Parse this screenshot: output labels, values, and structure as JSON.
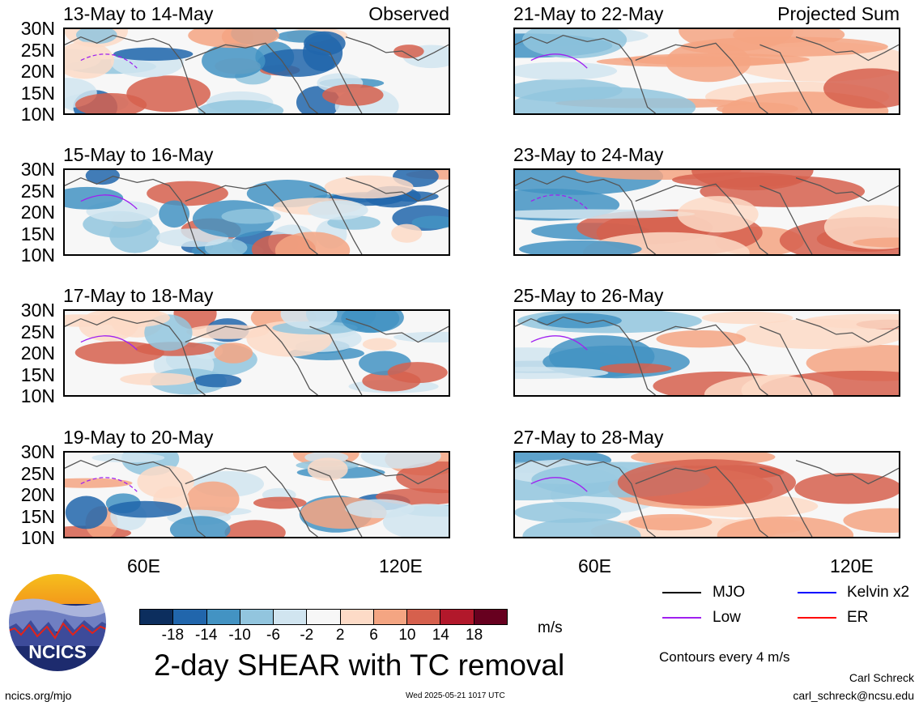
{
  "panels": [
    {
      "id": "p1",
      "title": "13-May to 14-May",
      "tag": "Observed"
    },
    {
      "id": "p2",
      "title": "21-May to 22-May",
      "tag": "Projected Sum"
    },
    {
      "id": "p3",
      "title": "15-May to 16-May",
      "tag": ""
    },
    {
      "id": "p4",
      "title": "23-May to 24-May",
      "tag": ""
    },
    {
      "id": "p5",
      "title": "17-May to 18-May",
      "tag": ""
    },
    {
      "id": "p6",
      "title": "25-May to 26-May",
      "tag": ""
    },
    {
      "id": "p7",
      "title": "19-May to 20-May",
      "tag": ""
    },
    {
      "id": "p8",
      "title": "27-May to 28-May",
      "tag": ""
    }
  ],
  "lat_labels": [
    "30N",
    "25N",
    "20N",
    "15N",
    "10N"
  ],
  "lon_labels": [
    "60E",
    "120E"
  ],
  "colorbar": {
    "ticks": [
      "-18",
      "-14",
      "-10",
      "-6",
      "-2",
      "2",
      "6",
      "10",
      "14",
      "18"
    ],
    "colors": [
      "#0c2e5e",
      "#2166ac",
      "#4393c3",
      "#92c5de",
      "#d1e5f0",
      "#f7f7f7",
      "#fddbc7",
      "#f4a582",
      "#d6604d",
      "#b2182b",
      "#67001f"
    ],
    "unit": "m/s"
  },
  "legend": {
    "mjo": {
      "label": "MJO",
      "color": "#000000"
    },
    "kelvin": {
      "label": "Kelvin x2",
      "color": "#0000ff"
    },
    "low": {
      "label": "Low",
      "color": "#a020f0"
    },
    "er": {
      "label": "ER",
      "color": "#ff0000"
    },
    "note": "Contours every 4 m/s"
  },
  "footer": {
    "title": "2-day SHEAR with TC removal",
    "logo_text": "NCICS",
    "site": "ncics.org/mjo",
    "timestamp": "Wed 2025-05-21 1017 UTC",
    "author": "Carl Schreck",
    "email": "carl_schreck@ncsu.edu"
  }
}
